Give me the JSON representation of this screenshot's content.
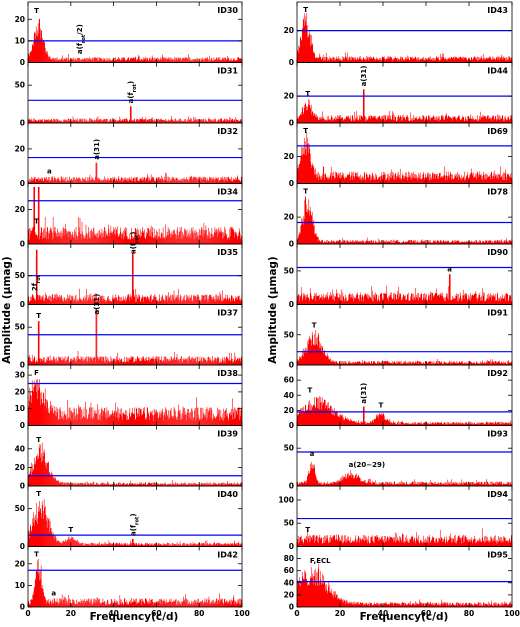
{
  "figure": {
    "ylabel": "Amplitude (μmag)",
    "xlabel": "Frequency(c/d)"
  },
  "colors": {
    "spectrum": "#ff0000",
    "threshold": "#0000ff",
    "axes": "#000000"
  },
  "chart_data": [
    {
      "type": "bar",
      "id": "ID30",
      "column": "left",
      "row": 0,
      "xlim": [
        0,
        100
      ],
      "ylim": [
        0,
        28
      ],
      "yticks": [
        0,
        10,
        20
      ],
      "threshold": 10,
      "noise": 2.5,
      "bumps": [
        {
          "x": 5,
          "w": 3,
          "h": 19
        }
      ],
      "spikes": [],
      "annotations": [
        {
          "text": "T",
          "x": 4
        },
        {
          "text": "a(f_{rot}/2)",
          "x": 24
        }
      ]
    },
    {
      "type": "bar",
      "id": "ID31",
      "column": "left",
      "row": 1,
      "xlim": [
        0,
        100
      ],
      "ylim": [
        0,
        80
      ],
      "yticks": [
        0,
        50
      ],
      "threshold": 30,
      "noise": 6,
      "bumps": [],
      "spikes": [
        {
          "x": 48,
          "h": 22
        }
      ],
      "annotations": [
        {
          "text": "a(f_{rot})",
          "x": 48
        }
      ]
    },
    {
      "type": "bar",
      "id": "ID32",
      "column": "left",
      "row": 2,
      "xlim": [
        0,
        100
      ],
      "ylim": [
        0,
        35
      ],
      "yticks": [
        0,
        20
      ],
      "threshold": 15,
      "noise": 4,
      "bumps": [],
      "spikes": [
        {
          "x": 32,
          "h": 12
        }
      ],
      "annotations": [
        {
          "text": "a",
          "x": 10
        },
        {
          "text": "a(31)",
          "x": 32
        }
      ]
    },
    {
      "type": "bar",
      "id": "ID34",
      "column": "left",
      "row": 3,
      "xlim": [
        0,
        100
      ],
      "ylim": [
        0,
        35
      ],
      "yticks": [
        0,
        20
      ],
      "threshold": 25,
      "noise": 10,
      "bumps": [],
      "spikes": [
        {
          "x": 3,
          "h": 33
        },
        {
          "x": 5,
          "h": 33
        }
      ],
      "annotations": [
        {
          "text": "T",
          "x": 4
        }
      ]
    },
    {
      "type": "bar",
      "id": "ID35",
      "column": "left",
      "row": 4,
      "xlim": [
        0,
        100
      ],
      "ylim": [
        0,
        105
      ],
      "yticks": [
        0,
        50
      ],
      "threshold": 50,
      "noise": 18,
      "bumps": [],
      "spikes": [
        {
          "x": 4,
          "h": 95
        },
        {
          "x": 49,
          "h": 90
        }
      ],
      "annotations": [
        {
          "text": "2f_{rot}",
          "x": 3
        },
        {
          "text": "a(f_{rot})",
          "x": 49
        }
      ]
    },
    {
      "type": "bar",
      "id": "ID37",
      "column": "left",
      "row": 5,
      "xlim": [
        0,
        100
      ],
      "ylim": [
        0,
        80
      ],
      "yticks": [
        0,
        50
      ],
      "threshold": 40,
      "noise": 12,
      "bumps": [],
      "spikes": [
        {
          "x": 5,
          "h": 58
        },
        {
          "x": 32,
          "h": 75
        }
      ],
      "annotations": [
        {
          "text": "T",
          "x": 5
        },
        {
          "text": "a(31)",
          "x": 32
        }
      ]
    },
    {
      "type": "bar",
      "id": "ID38",
      "column": "left",
      "row": 6,
      "xlim": [
        0,
        100
      ],
      "ylim": [
        0,
        36
      ],
      "yticks": [
        0,
        10,
        20,
        30
      ],
      "threshold": 25,
      "noise": 11,
      "bumps": [
        {
          "x": 4,
          "w": 5,
          "h": 20
        }
      ],
      "spikes": [],
      "annotations": [
        {
          "text": "F",
          "x": 4
        }
      ]
    },
    {
      "type": "bar",
      "id": "ID39",
      "column": "left",
      "row": 7,
      "xlim": [
        0,
        100
      ],
      "ylim": [
        0,
        65
      ],
      "yticks": [
        0,
        20,
        40
      ],
      "threshold": 11,
      "noise": 4,
      "bumps": [
        {
          "x": 6,
          "w": 5,
          "h": 40
        }
      ],
      "spikes": [],
      "annotations": [
        {
          "text": "T",
          "x": 5
        }
      ]
    },
    {
      "type": "bar",
      "id": "ID40",
      "column": "left",
      "row": 8,
      "xlim": [
        0,
        100
      ],
      "ylim": [
        0,
        80
      ],
      "yticks": [
        0,
        50
      ],
      "threshold": 15,
      "noise": 5,
      "bumps": [
        {
          "x": 6,
          "w": 5,
          "h": 60
        },
        {
          "x": 20,
          "w": 3,
          "h": 10
        }
      ],
      "spikes": [
        {
          "x": 49,
          "h": 10
        }
      ],
      "annotations": [
        {
          "text": "T",
          "x": 5
        },
        {
          "text": "T",
          "x": 20
        },
        {
          "text": "a(f_{rot})",
          "x": 49
        }
      ]
    },
    {
      "type": "bar",
      "id": "ID42",
      "column": "left",
      "row": 9,
      "xlim": [
        0,
        100
      ],
      "ylim": [
        0,
        28
      ],
      "yticks": [
        0,
        10,
        20
      ],
      "threshold": 17,
      "noise": 4,
      "bumps": [
        {
          "x": 5,
          "w": 2,
          "h": 20
        }
      ],
      "spikes": [],
      "annotations": [
        {
          "text": "T",
          "x": 4
        },
        {
          "text": "a",
          "x": 12
        }
      ]
    },
    {
      "type": "bar",
      "id": "ID43",
      "column": "right",
      "row": 0,
      "xlim": [
        0,
        100
      ],
      "ylim": [
        0,
        38
      ],
      "yticks": [
        0,
        20
      ],
      "threshold": 20,
      "noise": 4,
      "bumps": [
        {
          "x": 4,
          "w": 3,
          "h": 28
        }
      ],
      "spikes": [],
      "annotations": [
        {
          "text": "T",
          "x": 4
        }
      ]
    },
    {
      "type": "bar",
      "id": "ID44",
      "column": "right",
      "row": 1,
      "xlim": [
        0,
        100
      ],
      "ylim": [
        0,
        45
      ],
      "yticks": [
        0,
        20
      ],
      "threshold": 20,
      "noise": 6,
      "bumps": [
        {
          "x": 5,
          "w": 3,
          "h": 12
        }
      ],
      "spikes": [
        {
          "x": 31,
          "h": 25
        }
      ],
      "annotations": [
        {
          "text": "T",
          "x": 5
        },
        {
          "text": "a(31)",
          "x": 31
        }
      ]
    },
    {
      "type": "bar",
      "id": "ID69",
      "column": "right",
      "row": 2,
      "xlim": [
        0,
        100
      ],
      "ylim": [
        0,
        45
      ],
      "yticks": [
        0,
        20
      ],
      "threshold": 28,
      "noise": 9,
      "bumps": [
        {
          "x": 4,
          "w": 3,
          "h": 30
        }
      ],
      "spikes": [],
      "annotations": [
        {
          "text": "T",
          "x": 4
        }
      ]
    },
    {
      "type": "bar",
      "id": "ID78",
      "column": "right",
      "row": 3,
      "xlim": [
        0,
        100
      ],
      "ylim": [
        0,
        45
      ],
      "yticks": [
        0,
        20
      ],
      "threshold": 16,
      "noise": 3,
      "bumps": [
        {
          "x": 5,
          "w": 3,
          "h": 36
        }
      ],
      "spikes": [],
      "annotations": [
        {
          "text": "T",
          "x": 4
        }
      ]
    },
    {
      "type": "bar",
      "id": "ID90",
      "column": "right",
      "row": 4,
      "xlim": [
        0,
        100
      ],
      "ylim": [
        0,
        90
      ],
      "yticks": [
        0,
        50
      ],
      "threshold": 55,
      "noise": 18,
      "bumps": [],
      "spikes": [
        {
          "x": 71,
          "h": 45
        }
      ],
      "annotations": [
        {
          "text": "a",
          "x": 71
        }
      ]
    },
    {
      "type": "bar",
      "id": "ID91",
      "column": "right",
      "row": 5,
      "xlim": [
        0,
        100
      ],
      "ylim": [
        0,
        100
      ],
      "yticks": [
        0,
        50
      ],
      "threshold": 22,
      "noise": 7,
      "bumps": [
        {
          "x": 8,
          "w": 5,
          "h": 50
        }
      ],
      "spikes": [],
      "annotations": [
        {
          "text": "T",
          "x": 8
        }
      ]
    },
    {
      "type": "bar",
      "id": "ID92",
      "column": "right",
      "row": 6,
      "xlim": [
        0,
        100
      ],
      "ylim": [
        0,
        80
      ],
      "yticks": [
        0,
        20,
        40,
        60
      ],
      "threshold": 18,
      "noise": 5,
      "bumps": [
        {
          "x": 10,
          "w": 10,
          "h": 35
        },
        {
          "x": 39,
          "w": 3,
          "h": 15
        }
      ],
      "spikes": [
        {
          "x": 31,
          "h": 25
        }
      ],
      "annotations": [
        {
          "text": "T",
          "x": 6
        },
        {
          "text": "a(31)",
          "x": 31
        },
        {
          "text": "T",
          "x": 39
        }
      ]
    },
    {
      "type": "bar",
      "id": "ID93",
      "column": "right",
      "row": 7,
      "xlim": [
        0,
        100
      ],
      "ylim": [
        0,
        80
      ],
      "yticks": [
        0,
        50
      ],
      "threshold": 45,
      "noise": 6,
      "bumps": [
        {
          "x": 7,
          "w": 2,
          "h": 30
        },
        {
          "x": 25,
          "w": 5,
          "h": 15
        }
      ],
      "spikes": [],
      "annotations": [
        {
          "text": "a",
          "x": 7
        },
        {
          "text": "a(20−29)",
          "x": 24
        }
      ]
    },
    {
      "type": "bar",
      "id": "ID94",
      "column": "right",
      "row": 8,
      "xlim": [
        0,
        100
      ],
      "ylim": [
        0,
        130
      ],
      "yticks": [
        0,
        50,
        100
      ],
      "threshold": 60,
      "noise": 25,
      "bumps": [],
      "spikes": [],
      "annotations": [
        {
          "text": "T",
          "x": 5
        }
      ]
    },
    {
      "type": "bar",
      "id": "ID95",
      "column": "right",
      "row": 9,
      "xlim": [
        0,
        100
      ],
      "ylim": [
        0,
        100
      ],
      "yticks": [
        0,
        20,
        40,
        60,
        80
      ],
      "threshold": 42,
      "noise": 8,
      "bumps": [
        {
          "x": 7,
          "w": 10,
          "h": 60
        }
      ],
      "spikes": [],
      "annotations": [
        {
          "text": "F,ECL",
          "x": 6
        }
      ]
    }
  ],
  "xaxis": {
    "ticks": [
      0,
      20,
      40,
      60,
      80,
      100
    ]
  }
}
